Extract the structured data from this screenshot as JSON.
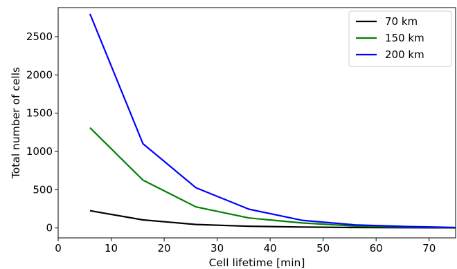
{
  "chart_data": {
    "type": "line",
    "title": "",
    "xlabel": "Cell lifetime [min]",
    "ylabel": "Total number of cells",
    "xlim": [
      0,
      75
    ],
    "ylim": [
      -130,
      2880
    ],
    "xticks": [
      0,
      10,
      20,
      30,
      40,
      50,
      60,
      70
    ],
    "yticks": [
      0,
      500,
      1000,
      1500,
      2000,
      2500
    ],
    "grid": false,
    "legend_position": "top-right",
    "x": [
      6,
      16,
      26,
      36,
      46,
      56,
      66,
      76
    ],
    "series": [
      {
        "name": "70 km",
        "color": "#000000",
        "values": [
          225,
          105,
          45,
          22,
          12,
          6,
          3,
          1
        ]
      },
      {
        "name": "150 km",
        "color": "#008000",
        "values": [
          1310,
          625,
          275,
          130,
          65,
          25,
          10,
          3
        ]
      },
      {
        "name": "200 km",
        "color": "#0000ff",
        "values": [
          2800,
          1100,
          525,
          245,
          100,
          40,
          18,
          5
        ]
      }
    ]
  }
}
